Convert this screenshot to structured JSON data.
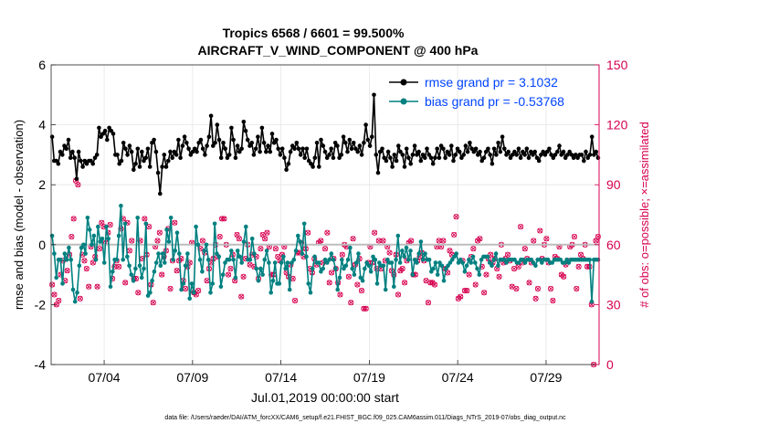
{
  "chart_data": {
    "type": "line",
    "title_line1": "Tropics 6568 / 6601 = 99.500%",
    "title_line2": "AIRCRAFT_V_WIND_COMPONENT @ 400 hPa",
    "ylabel_left": "rmse and bias (model - observation)",
    "ylabel_right": "# of obs: o=possible; ×=assimilated",
    "xlabel": "Jul.01,2019 00:00:00 start",
    "footnote": "data file: /Users/raeder/DAI/ATM_forcXX/CAM6_setup/f.e21.FHIST_BGC.f09_025.CAM6assim.011/Diags_NTrS_2019-07/obs_diag_output.nc",
    "x_range_days": [
      1.0,
      32.0
    ],
    "x_ticks": [
      {
        "day": 4,
        "label": "07/04"
      },
      {
        "day": 9,
        "label": "07/09"
      },
      {
        "day": 14,
        "label": "07/14"
      },
      {
        "day": 19,
        "label": "07/19"
      },
      {
        "day": 24,
        "label": "07/24"
      },
      {
        "day": 29,
        "label": "07/29"
      }
    ],
    "ylim_left": [
      -4,
      6
    ],
    "yticks_left": [
      "-4",
      "-2",
      "0",
      "2",
      "4",
      "6"
    ],
    "ylim_right": [
      0,
      150
    ],
    "yticks_right": [
      "0",
      "30",
      "60",
      "90",
      "120",
      "150"
    ],
    "colors": {
      "rmse": "#000000",
      "bias": "#008080",
      "obs": "#d6004f",
      "zero_line": "#bdbdbd",
      "legend_text": "#0044ff",
      "right_axis": "#d6004f"
    },
    "series": [
      {
        "name": "rmse grand pr = 3.1032",
        "key": "rmse",
        "values": [
          3.6,
          2.8,
          2.8,
          2.7,
          3.1,
          3.0,
          3.3,
          3.2,
          3.5,
          2.9,
          3.1,
          2.9,
          2.2,
          3.1,
          2.8,
          2.6,
          2.8,
          2.7,
          2.8,
          2.8,
          2.7,
          2.9,
          3.0,
          3.9,
          3.6,
          3.7,
          3.8,
          3.5,
          3.9,
          3.8,
          3.7,
          3.0,
          3.0,
          2.7,
          2.8,
          3.4,
          3.2,
          3.0,
          3.3,
          3.1,
          2.5,
          2.7,
          3.2,
          2.6,
          3.1,
          2.8,
          2.9,
          3.2,
          2.6,
          3.4,
          3.5,
          3.1,
          2.4,
          1.7,
          2.6,
          3.0,
          2.6,
          2.8,
          3.1,
          2.9,
          3.1,
          3.0,
          3.5,
          2.9,
          3.3,
          3.6,
          3.4,
          3.2,
          3.0,
          3.1,
          3.2,
          3.1,
          3.4,
          3.5,
          3.2,
          3.0,
          3.3,
          3.6,
          4.3,
          3.3,
          3.4,
          4.0,
          3.5,
          2.9,
          3.4,
          3.2,
          2.9,
          3.0,
          3.9,
          3.5,
          2.9,
          3.3,
          3.1,
          3.2,
          4.1,
          3.8,
          3.5,
          3.3,
          3.4,
          3.0,
          3.2,
          3.6,
          3.1,
          3.9,
          3.4,
          3.1,
          3.3,
          3.1,
          3.7,
          3.4,
          3.5,
          3.2,
          3.0,
          3.2,
          2.9,
          2.5,
          2.7,
          3.1,
          3.3,
          3.2,
          3.4,
          3.2,
          3.0,
          3.2,
          2.9,
          3.2,
          2.8,
          2.7,
          2.6,
          2.9,
          3.4,
          2.6,
          3.5,
          3.3,
          3.1,
          2.9,
          3.0,
          3.2,
          2.9,
          3.4,
          3.3,
          2.9,
          3.0,
          3.6,
          3.4,
          3.1,
          3.5,
          3.2,
          3.4,
          3.2,
          3.1,
          3.3,
          3.0,
          3.4,
          4.0,
          3.5,
          3.3,
          3.6,
          5.0,
          3.0,
          2.4,
          3.1,
          3.2,
          2.9,
          2.8,
          3.1,
          2.9,
          2.6,
          3.0,
          2.8,
          3.3,
          3.1,
          3.0,
          2.6,
          3.2,
          2.9,
          2.7,
          3.0,
          3.3,
          3.0,
          3.1,
          2.8,
          3.0,
          2.9,
          3.2,
          3.0,
          2.9,
          2.7,
          2.9,
          3.2,
          2.9,
          3.3,
          3.2,
          2.9,
          3.1,
          3.0,
          3.3,
          2.8,
          3.0,
          3.2,
          3.1,
          2.9,
          3.0,
          3.3,
          3.1,
          3.4,
          3.2,
          3.1,
          3.2,
          3.0,
          3.1,
          2.8,
          2.9,
          3.1,
          3.2,
          3.0,
          2.7,
          3.2,
          3.0,
          3.4,
          3.1,
          3.6,
          3.2,
          3.0,
          3.1,
          2.9,
          3.0,
          3.1,
          3.0,
          3.2,
          2.9,
          3.1,
          3.0,
          3.2,
          2.9,
          3.1,
          3.0,
          3.1,
          2.9,
          2.8,
          3.0,
          3.1,
          3.0,
          3.1,
          3.2,
          3.0,
          2.9,
          3.0,
          3.1,
          3.3,
          3.0,
          3.1,
          2.9,
          3.0,
          3.1,
          3.0,
          2.9,
          3.0,
          2.9,
          3.0,
          3.0,
          2.8,
          3.1,
          2.9,
          3.0,
          3.6,
          3.0,
          3.1,
          2.9
        ]
      },
      {
        "name": "bias grand pr = -0.53768",
        "key": "bias",
        "values": [
          0.3,
          -0.3,
          -1.1,
          -0.5,
          -0.5,
          -1.3,
          -0.3,
          -0.5,
          -0.1,
          -0.5,
          -1.5,
          -1.9,
          -1.6,
          -0.7,
          -0.1,
          0.0,
          -0.3,
          0.9,
          0.5,
          0.0,
          0.3,
          -0.5,
          0.6,
          0.1,
          0.2,
          -0.6,
          0.6,
          0.2,
          -1.4,
          -0.9,
          -0.5,
          -0.5,
          0.3,
          1.3,
          -0.5,
          0.7,
          -0.4,
          -0.7,
          -1.0,
          -1.2,
          -0.8,
          0.9,
          -0.7,
          -1.1,
          -0.8,
          0.7,
          -1.7,
          -1.6,
          -1.2,
          -0.9,
          -0.6,
          -0.3,
          -0.7,
          -0.3,
          -0.6,
          0.5,
          0.1,
          0.9,
          -0.5,
          -0.2,
          0.4,
          -0.3,
          -1.5,
          -1.3,
          -0.7,
          -0.3,
          -1.8,
          -1.3,
          -1.6,
          0.6,
          0.0,
          -0.5,
          -0.9,
          -0.2,
          0.0,
          -0.5,
          -1.6,
          -1.3,
          0.7,
          -0.3,
          -0.4,
          -1.4,
          -1.0,
          -0.6,
          -0.5,
          -0.5,
          -0.2,
          -0.5,
          -1.1,
          -0.2,
          -0.4,
          -0.6,
          0.1,
          0.6,
          -0.5,
          -0.5,
          0.2,
          -0.3,
          -0.8,
          -1.2,
          -0.8,
          -1.0,
          -0.5,
          -0.2,
          -0.6,
          -1.6,
          -1.2,
          -0.6,
          -1.3,
          -1.3,
          -0.6,
          -0.4,
          -0.8,
          -0.6,
          -1.5,
          -0.6,
          -0.5,
          -0.2,
          0.3,
          0.1,
          -0.3,
          0.7,
          -0.4,
          -1.3,
          -1.6,
          -0.8,
          -0.4,
          -0.6,
          -0.6,
          -0.9,
          -0.8,
          -0.5,
          -0.6,
          -0.5,
          -0.3,
          -0.5,
          -0.8,
          -1.5,
          -1.1,
          -0.5,
          -0.8,
          -0.7,
          -0.5,
          -0.1,
          -0.8,
          -1.0,
          -0.6,
          -0.3,
          -1.1,
          -1.2,
          -0.8,
          -0.6,
          -0.7,
          -0.9,
          -0.4,
          -0.5,
          -1.3,
          -0.6,
          -0.7,
          -0.7,
          -1.5,
          -0.5,
          -0.6,
          -0.6,
          -1.4,
          -0.5,
          0.3,
          -0.6,
          -0.2,
          -0.4,
          -0.1,
          -0.5,
          -0.2,
          -1.0,
          -0.5,
          -0.6,
          -0.3,
          0.1,
          -0.5,
          -0.3,
          -0.5,
          -0.5,
          -0.9,
          -0.8,
          -0.6,
          -1.0,
          -0.6,
          -0.7,
          -1.2,
          -0.8,
          -0.7,
          -0.6,
          -0.5,
          -0.4,
          -0.3,
          -0.6,
          -0.5,
          -0.6,
          -0.9,
          -0.7,
          -0.5,
          -0.6,
          -0.4,
          -0.6,
          -0.8,
          -1.0,
          -0.5,
          -0.4,
          -0.4,
          -0.4,
          -0.6,
          -0.7,
          -0.5,
          -0.3,
          -0.7,
          -0.5,
          -0.5,
          -0.5,
          -0.6,
          -0.5,
          -0.5,
          -0.5,
          -0.5,
          -0.6,
          -0.6,
          -0.5,
          -0.5,
          -0.6,
          -0.5,
          -0.5,
          -0.5,
          -0.6,
          -0.7,
          -0.5,
          -0.5,
          -0.6,
          -0.5,
          -0.5,
          -0.5,
          -0.6,
          -0.6,
          -0.5,
          -0.5,
          -0.5,
          -0.5,
          -0.6,
          -0.6,
          -0.5,
          -0.6,
          -0.5,
          -0.5,
          -0.5,
          -0.5,
          -0.5,
          -0.5,
          -0.5,
          -0.5,
          -0.5,
          -0.5,
          -1.9,
          -0.5,
          -0.5,
          -0.5
        ]
      }
    ],
    "obs_counts": [
      40,
      35,
      30,
      32,
      45,
      52,
      42,
      47,
      55,
      64,
      73,
      92,
      90,
      33,
      55,
      52,
      48,
      39,
      59,
      51,
      54,
      39,
      58,
      71,
      69,
      61,
      66,
      70,
      43,
      49,
      52,
      49,
      68,
      73,
      41,
      71,
      57,
      62,
      43,
      43,
      36,
      62,
      53,
      73,
      55,
      69,
      40,
      31,
      59,
      62,
      66,
      45,
      54,
      57,
      68,
      38,
      52,
      71,
      47,
      52,
      53,
      42,
      38,
      49,
      51,
      61,
      36,
      35,
      37,
      58,
      62,
      56,
      42,
      48,
      51,
      53,
      60,
      54,
      64,
      73,
      73,
      60,
      45,
      48,
      55,
      42,
      65,
      63,
      34,
      44,
      53,
      60,
      50,
      55,
      49,
      54,
      43,
      58,
      65,
      63,
      66,
      59,
      45,
      45,
      58,
      54,
      52,
      55,
      59,
      46,
      44,
      50,
      43,
      32,
      56,
      56,
      61,
      54,
      58,
      66,
      48,
      46,
      53,
      50,
      61,
      62,
      51,
      58,
      66,
      41,
      46,
      53,
      48,
      41,
      35,
      55,
      60,
      59,
      44,
      31,
      63,
      50,
      40,
      53,
      37,
      28,
      28,
      51,
      59,
      51,
      66,
      48,
      62,
      48,
      62,
      52,
      59,
      56,
      47,
      45,
      55,
      35,
      47,
      48,
      41,
      52,
      61,
      62,
      45,
      45,
      52,
      54,
      56,
      52,
      42,
      31,
      41,
      41,
      40,
      59,
      62,
      59,
      62,
      48,
      46,
      57,
      55,
      65,
      74,
      33,
      34,
      52,
      37,
      37,
      45,
      54,
      58,
      40,
      62,
      63,
      49,
      36,
      45,
      53,
      55,
      51,
      53,
      48,
      44,
      60,
      51,
      53,
      55,
      52,
      39,
      48,
      38,
      49,
      69,
      51,
      58,
      53,
      41,
      51,
      62,
      33,
      38,
      67,
      53,
      60,
      63,
      51,
      38,
      32,
      54,
      53,
      59,
      45,
      44,
      50,
      52,
      59,
      60,
      64,
      38,
      49,
      55,
      53,
      60,
      49,
      49,
      30,
      0,
      62,
      64
    ]
  }
}
